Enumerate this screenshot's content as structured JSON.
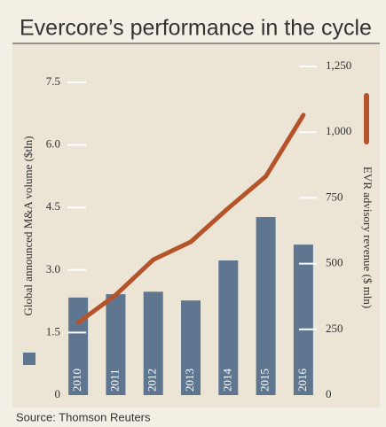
{
  "chart_data": {
    "type": "bar-line",
    "title": "Evercore’s performance in the cycle",
    "source": "Source: Thomson Reuters",
    "categories": [
      "2010",
      "2011",
      "2012",
      "2013",
      "2014",
      "2015",
      "2016"
    ],
    "series": [
      {
        "name": "Global announced M&A volume ($tln)",
        "type": "bar",
        "color": "#5f7690",
        "values": [
          2.34,
          2.42,
          2.48,
          2.27,
          3.23,
          4.27,
          3.61
        ]
      },
      {
        "name": "EVR advisory revenue ($ mln)",
        "type": "line",
        "axis": "y2",
        "color": "#b5532a",
        "values": [
          276,
          381,
          515,
          583,
          711,
          832,
          1065
        ]
      }
    ],
    "ylim": [
      0,
      7.5
    ],
    "yticks": [
      0,
      1.5,
      {
        "value": 3,
        "label": "3.0"
      },
      4.5,
      {
        "value": 6,
        "label": "6.0"
      },
      7.5
    ],
    "y2lim": [
      0,
      1250
    ],
    "y2ticks": [
      0,
      250,
      500,
      750,
      {
        "value": 1000,
        "label": "1,000"
      },
      {
        "value": 1250,
        "label": "1,250"
      }
    ]
  }
}
